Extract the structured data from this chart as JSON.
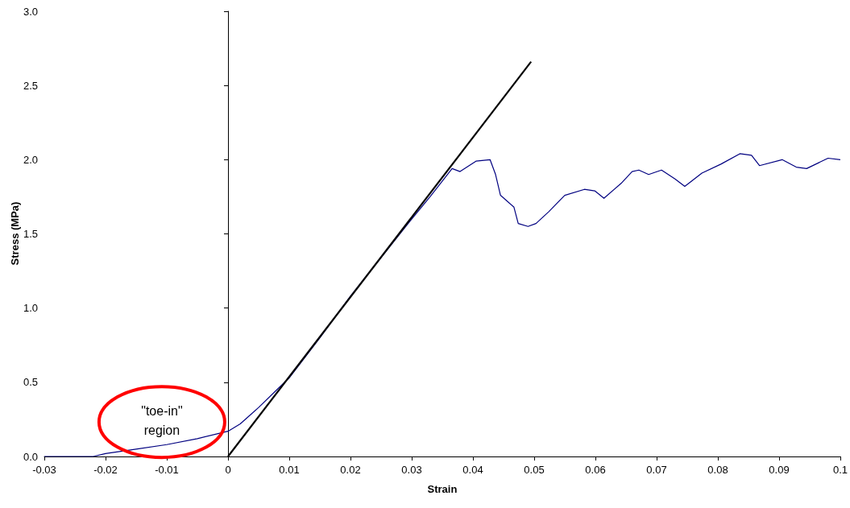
{
  "chart_data": {
    "type": "line",
    "xlabel": "Strain",
    "ylabel": "Stress (MPa)",
    "annotations": [
      "\"toe-in\"\nregion"
    ],
    "xlim": [
      -0.03,
      0.1
    ],
    "xticks": [
      -0.03,
      -0.02,
      -0.01,
      0,
      0.01,
      0.02,
      0.03,
      0.04,
      0.05,
      0.06,
      0.07,
      0.08,
      0.09,
      0.1
    ],
    "ylim": [
      0,
      3
    ],
    "yticks": [
      {
        "value": 0,
        "label": "0.0"
      },
      {
        "value": 0.5,
        "label": "0.5"
      },
      {
        "value": 1,
        "label": "1.0"
      },
      {
        "value": 1.5,
        "label": "1.5"
      },
      {
        "value": 2,
        "label": "2.0"
      },
      {
        "value": 2.5,
        "label": "2.5"
      },
      {
        "value": 3,
        "label": "3.0"
      }
    ],
    "marker": "none",
    "line_style": "solid",
    "series": [
      {
        "color": "#000080",
        "x": [
          -0.03,
          -0.022,
          -0.02,
          -0.015,
          -0.01,
          -0.005,
          0,
          0.002,
          0.005,
          0.008,
          0.01,
          0.015,
          0.02,
          0.025,
          0.03,
          0.033,
          0.0366,
          0.0379,
          0.0405,
          0.0428,
          0.0437,
          0.0445,
          0.0467,
          0.0474,
          0.049,
          0.0503,
          0.0524,
          0.055,
          0.0582,
          0.0599,
          0.0614,
          0.0642,
          0.066,
          0.0671,
          0.0687,
          0.0708,
          0.073,
          0.0746,
          0.0774,
          0.0805,
          0.0836,
          0.0855,
          0.0868,
          0.0905,
          0.0928,
          0.0945,
          0.098,
          0.1
        ],
        "values": [
          0,
          0,
          0.02,
          0.05,
          0.08,
          0.12,
          0.17,
          0.22,
          0.33,
          0.45,
          0.53,
          0.8,
          1.08,
          1.34,
          1.6,
          1.75,
          1.94,
          1.92,
          1.99,
          2.0,
          1.9,
          1.76,
          1.68,
          1.57,
          1.55,
          1.57,
          1.65,
          1.76,
          1.8,
          1.79,
          1.74,
          1.84,
          1.92,
          1.93,
          1.9,
          1.93,
          1.87,
          1.82,
          1.91,
          1.97,
          2.04,
          2.03,
          1.96,
          2.0,
          1.95,
          1.94,
          2.01,
          2.0
        ]
      },
      {
        "color": "#000000",
        "x": [
          0,
          0.0495
        ],
        "values": [
          0,
          2.66
        ]
      }
    ]
  }
}
